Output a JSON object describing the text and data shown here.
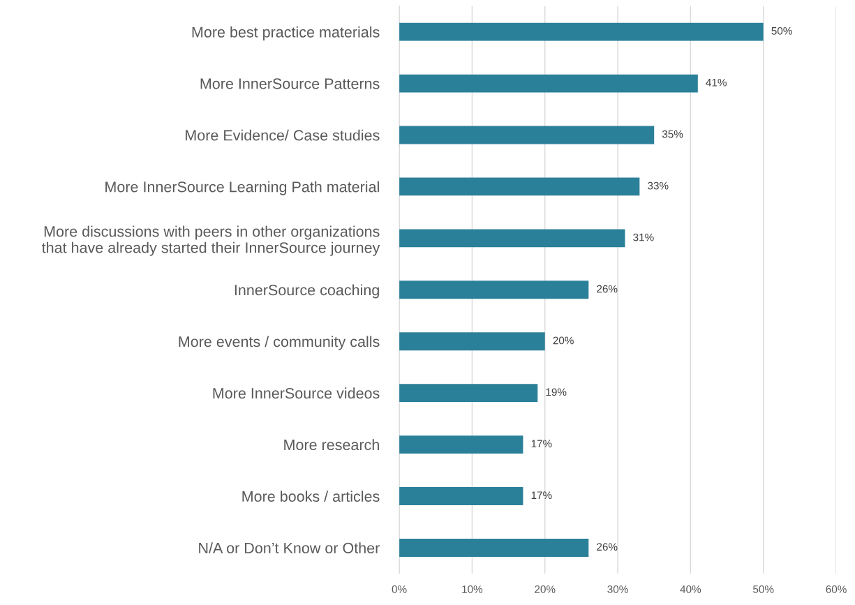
{
  "chart_data": {
    "type": "bar",
    "orientation": "horizontal",
    "categories": [
      "More best practice materials",
      "More InnerSource Patterns",
      "More Evidence/ Case studies",
      "More InnerSource Learning Path material",
      "More discussions with peers in other organizations\nthat have already started their InnerSource journey",
      "InnerSource coaching",
      "More events / community calls",
      "More InnerSource videos",
      "More research",
      "More books / articles",
      "N/A or Don’t Know or Other"
    ],
    "values": [
      50,
      41,
      35,
      33,
      31,
      26,
      20,
      19,
      17,
      17,
      26
    ],
    "color": "#2b8099",
    "value_labels": [
      "50%",
      "41%",
      "35%",
      "33%",
      "31%",
      "26%",
      "20%",
      "19%",
      "17%",
      "17%",
      "26%"
    ],
    "xlim": [
      0,
      60
    ],
    "xticks": [
      {
        "value": 0,
        "label": "0%"
      },
      {
        "value": 10,
        "label": "10%"
      },
      {
        "value": 20,
        "label": "20%"
      },
      {
        "value": 30,
        "label": "30%"
      },
      {
        "value": 40,
        "label": "40%"
      },
      {
        "value": 50,
        "label": "50%"
      },
      {
        "value": 60,
        "label": "60%"
      }
    ],
    "grid": "x",
    "legend": false
  }
}
